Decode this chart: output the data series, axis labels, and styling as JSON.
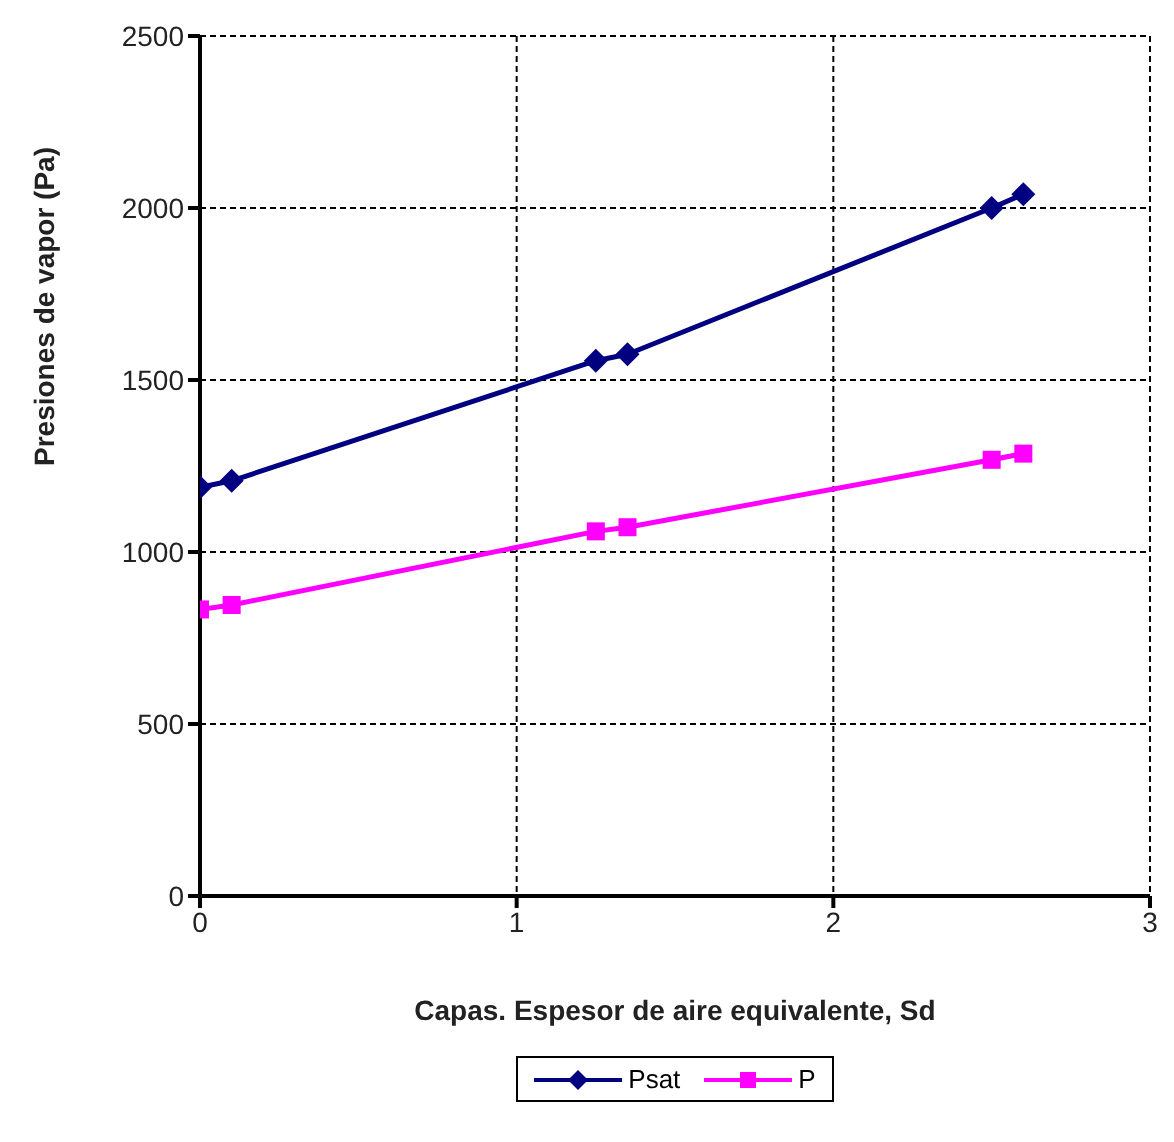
{
  "chart_data": {
    "type": "line",
    "xlabel": "Capas. Espesor de aire equivalente, Sd",
    "ylabel": "Presiones de vapor (Pa)",
    "x": [
      0,
      0.1,
      1.25,
      1.35,
      2.5,
      2.6
    ],
    "series": [
      {
        "name": "Psat",
        "color": "#000080",
        "marker": "diamond",
        "values": [
          1188,
          1207,
          1556,
          1575,
          2000,
          2040
        ]
      },
      {
        "name": "P",
        "color": "#ff00ff",
        "marker": "square",
        "values": [
          833,
          846,
          1060,
          1072,
          1268,
          1286
        ]
      }
    ],
    "xlim": [
      0,
      3
    ],
    "xticks": [
      0,
      1,
      2,
      3
    ],
    "ylim": [
      0,
      2500
    ],
    "yticks": [
      0,
      500,
      1000,
      1500,
      2000,
      2500
    ],
    "grid": true,
    "line_style": "solid",
    "legend": "bottom"
  }
}
